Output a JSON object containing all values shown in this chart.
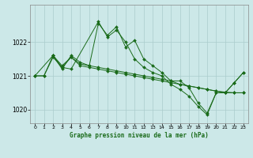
{
  "title": "Graphe pression niveau de la mer (hPa)",
  "background_color": "#cce8e8",
  "grid_color": "#aacccc",
  "line_color": "#1a6b1a",
  "marker_color": "#1a6b1a",
  "xlim": [
    -0.5,
    23.5
  ],
  "ylim": [
    1019.6,
    1023.1
  ],
  "yticks": [
    1020,
    1021,
    1022
  ],
  "xticks": [
    0,
    1,
    2,
    3,
    4,
    5,
    6,
    7,
    8,
    9,
    10,
    11,
    12,
    13,
    14,
    15,
    16,
    17,
    18,
    19,
    20,
    21,
    22,
    23
  ],
  "series": [
    {
      "x": [
        0,
        1,
        2,
        3,
        4,
        5,
        6,
        7,
        8,
        9,
        10,
        11,
        12,
        13,
        14,
        15,
        16,
        17,
        18,
        19,
        20,
        21,
        22,
        23
      ],
      "y": [
        1021.0,
        1021.0,
        1021.6,
        1021.2,
        1021.6,
        1021.4,
        1021.3,
        1022.55,
        1022.2,
        1022.45,
        1021.85,
        1022.05,
        1021.5,
        1021.3,
        1021.1,
        1020.85,
        1020.85,
        1020.65,
        1020.2,
        1019.9,
        1020.5,
        1020.5,
        1020.8,
        1021.1
      ]
    },
    {
      "x": [
        0,
        2,
        3,
        4,
        7,
        8,
        9,
        10,
        11,
        12,
        13,
        14,
        15,
        16,
        17,
        18,
        19,
        20,
        21,
        22,
        23
      ],
      "y": [
        1021.0,
        1021.6,
        1021.25,
        1021.2,
        1022.6,
        1022.15,
        1022.35,
        1022.0,
        1021.5,
        1021.25,
        1021.1,
        1021.0,
        1020.75,
        1020.6,
        1020.4,
        1020.1,
        1019.85,
        1020.5,
        1020.5,
        1020.8,
        1021.1
      ]
    },
    {
      "x": [
        0,
        1,
        2,
        3,
        4,
        5,
        6,
        7,
        8,
        9,
        10,
        11,
        12,
        13,
        14,
        15,
        16,
        17,
        18,
        19,
        20,
        21,
        22,
        23
      ],
      "y": [
        1021.0,
        1021.0,
        1021.55,
        1021.25,
        1021.55,
        1021.3,
        1021.25,
        1021.2,
        1021.15,
        1021.1,
        1021.05,
        1021.0,
        1020.95,
        1020.9,
        1020.85,
        1020.8,
        1020.75,
        1020.7,
        1020.65,
        1020.6,
        1020.55,
        1020.52,
        1020.5,
        1020.5
      ]
    },
    {
      "x": [
        2,
        3,
        4,
        5,
        6,
        7,
        8,
        9,
        10,
        11,
        12,
        13,
        14,
        15,
        16,
        17,
        18,
        19,
        20,
        21,
        22,
        23
      ],
      "y": [
        1021.6,
        1021.3,
        1021.55,
        1021.35,
        1021.3,
        1021.25,
        1021.2,
        1021.15,
        1021.1,
        1021.05,
        1021.0,
        1020.95,
        1020.9,
        1020.85,
        1020.75,
        1020.7,
        1020.65,
        1020.6,
        1020.55,
        1020.5,
        1020.5,
        1020.5
      ]
    }
  ]
}
